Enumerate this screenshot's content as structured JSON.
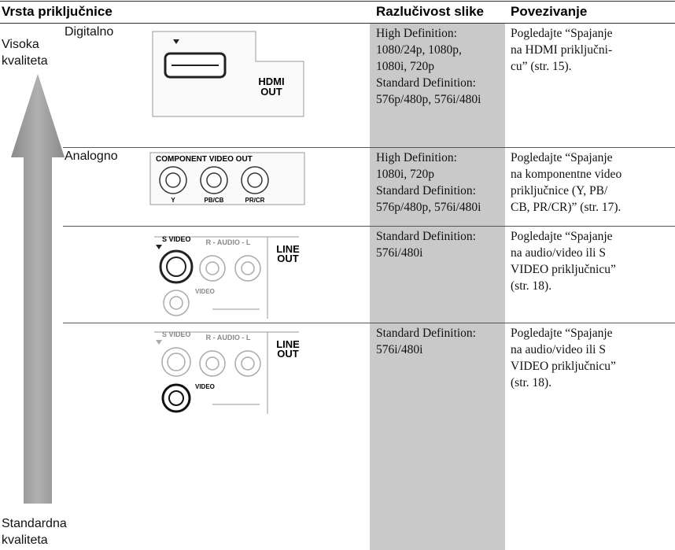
{
  "header": {
    "type": "Vrsta priključnice",
    "resolution": "Razlučivost slike",
    "connection": "Povezivanje"
  },
  "quality": {
    "high": [
      "Visoka",
      "kvaliteta"
    ],
    "standard": [
      "Standardna",
      "kvaliteta"
    ]
  },
  "rows": [
    {
      "kind": "Digitalno",
      "connector": {
        "label": [
          "HDMI",
          "OUT"
        ]
      },
      "resolution": [
        "High Definition:",
        "1080/24p, 1080p,",
        "1080i, 720p",
        "Standard Definition:",
        "576p/480p, 576i/480i"
      ],
      "connection": [
        "Pogledajte “Spajanje",
        "na HDMI priključni-",
        "cu” (str. 15)."
      ]
    },
    {
      "kind": "Analogno",
      "connector": {
        "title": "COMPONENT VIDEO OUT",
        "jacks": [
          "Y",
          "PB/CB",
          "PR/CR"
        ]
      },
      "resolution": [
        "High Definition:",
        "1080i, 720p",
        "Standard Definition:",
        "576p/480p, 576i/480i"
      ],
      "connection": [
        "Pogledajte “Spajanje",
        "na komponentne video",
        "priključnice (Y, PB/",
        "CB, PR/CR)” (str. 17)."
      ]
    },
    {
      "connector": {
        "svideo": "S VIDEO",
        "audio": "R - AUDIO - L",
        "line": [
          "LINE",
          "OUT"
        ],
        "video": "VIDEO"
      },
      "resolution": [
        "Standard Definition:",
        "576i/480i"
      ],
      "connection": [
        "Pogledajte “Spajanje",
        "na audio/video ili S",
        "VIDEO priključnicu”",
        "(str. 18)."
      ]
    },
    {
      "connector": {
        "svideo": "S VIDEO",
        "audio": "R - AUDIO - L",
        "line": [
          "LINE",
          "OUT"
        ],
        "video": "VIDEO"
      },
      "resolution": [
        "Standard Definition:",
        "576i/480i"
      ],
      "connection": [
        "Pogledajte “Spajanje",
        "na audio/video ili S",
        "VIDEO priključnicu”",
        "(str. 18)."
      ]
    }
  ]
}
